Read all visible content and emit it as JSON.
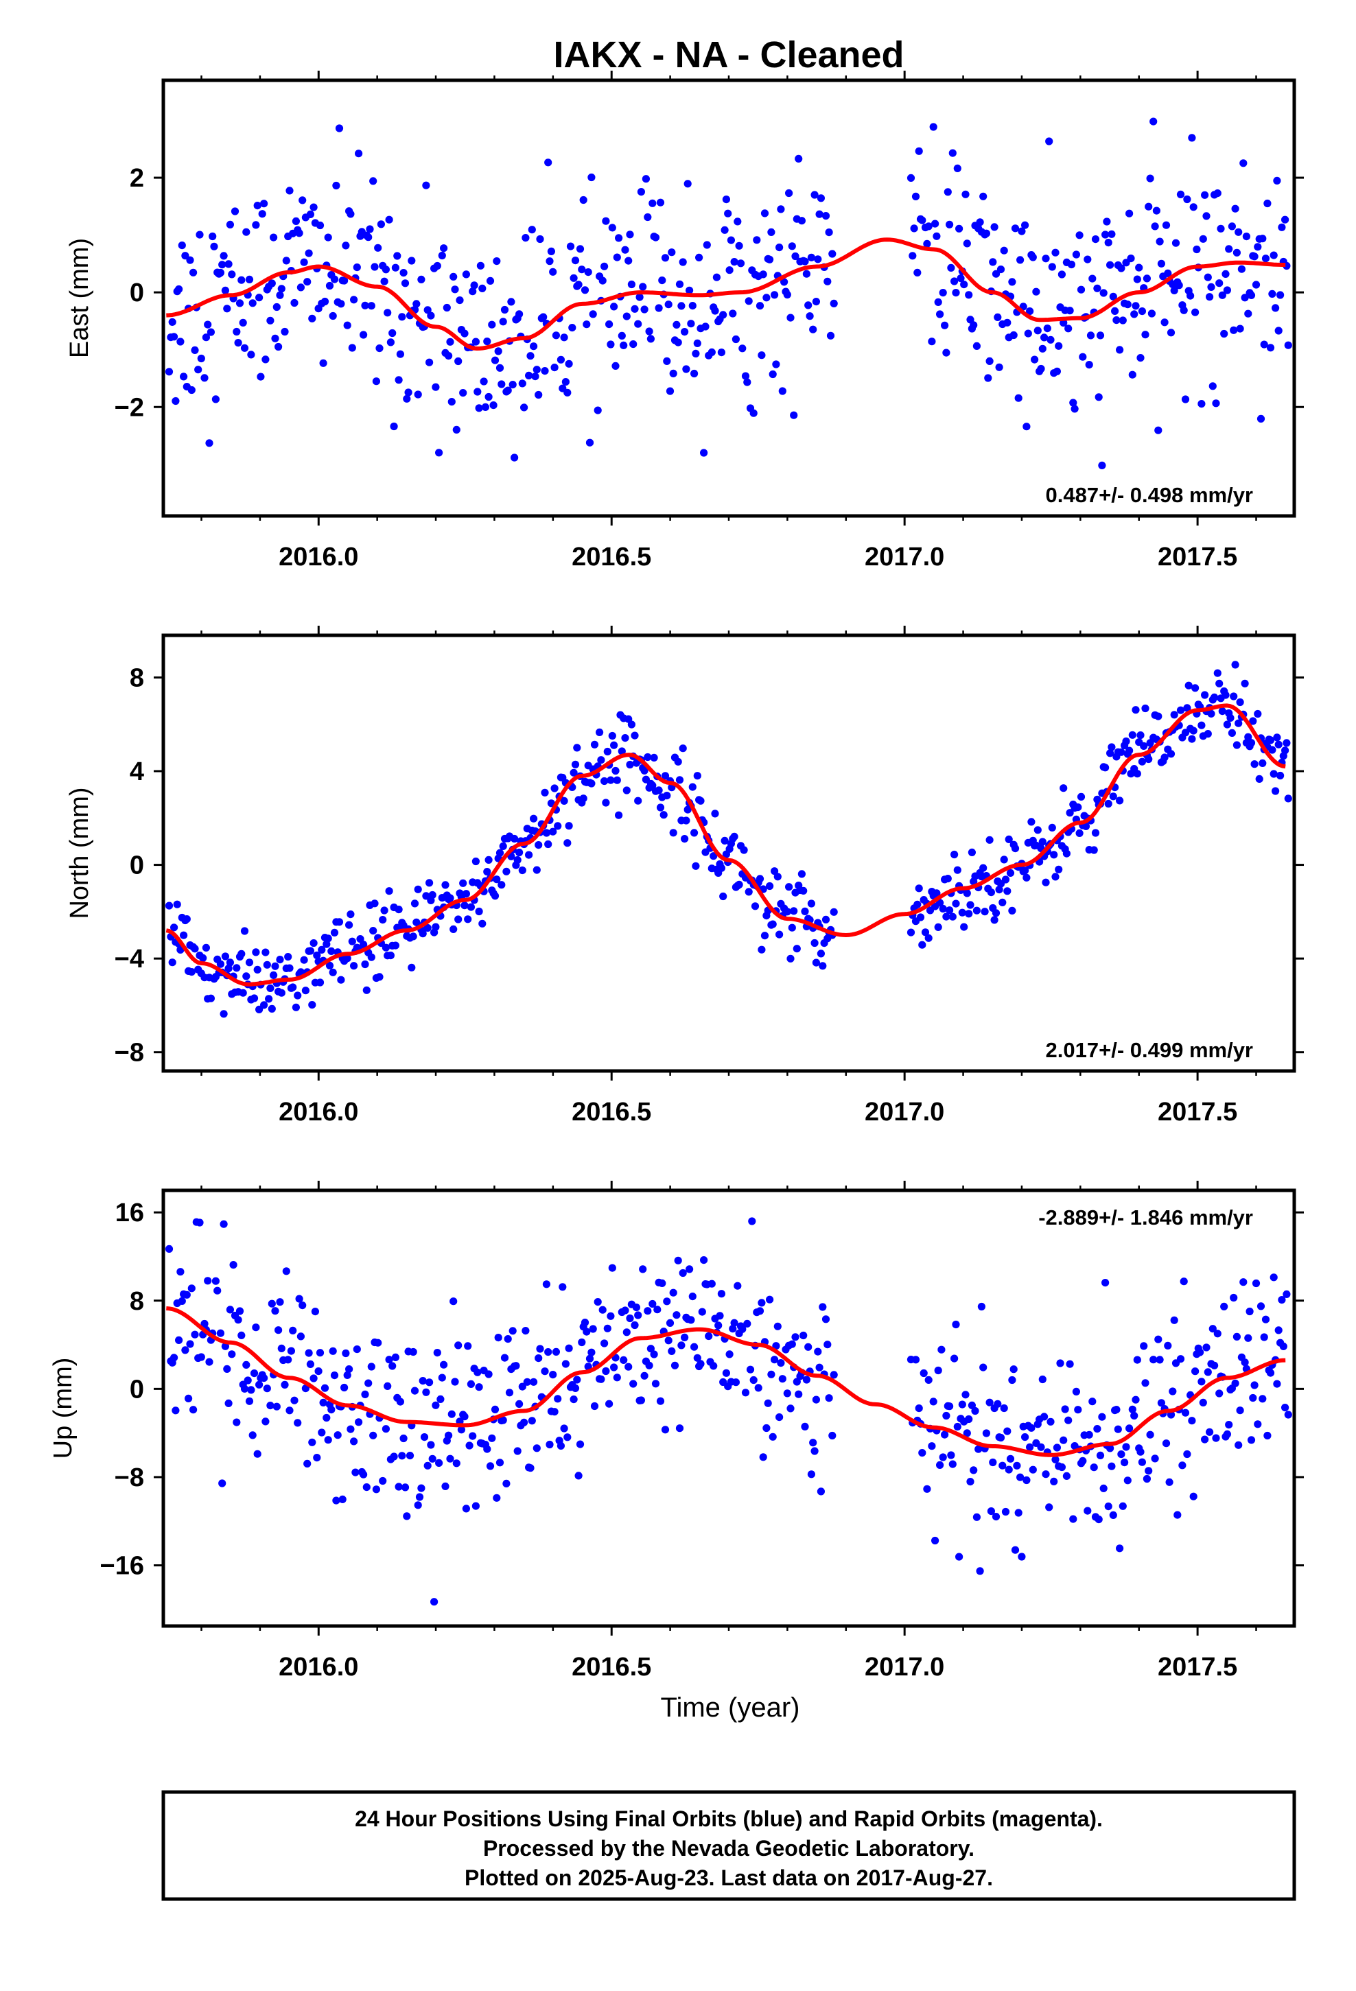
{
  "title": "IAKX  - NA - Cleaned",
  "x_axis_label": "Time (year)",
  "footer": {
    "line1": "24 Hour Positions Using Final Orbits (blue) and Rapid Orbits (magenta).",
    "line2": "Processed by the Nevada Geodetic Laboratory.",
    "line3": "Plotted on 2025-Aug-23. Last data on 2017-Aug-27."
  },
  "colors": {
    "points": "#0000ff",
    "fit": "#ff0000",
    "frame": "#000000"
  },
  "chart_data": [
    {
      "type": "scatter",
      "ylabel": "East (mm)",
      "rate_label": "0.487+/- 0.498 mm/yr",
      "rate_position": "bottom-right",
      "xlim": [
        2015.735,
        2017.665
      ],
      "ylim": [
        -3.9,
        3.7
      ],
      "x_ticks": [
        2016.0,
        2016.5,
        2017.0,
        2017.5
      ],
      "x_tick_labels": [
        "2016.0",
        "2016.5",
        "2017.0",
        "2017.5"
      ],
      "y_ticks": [
        -2,
        0,
        2
      ],
      "y_tick_labels": [
        "−2",
        "0",
        "2"
      ],
      "fit_curve": {
        "x": [
          2015.74,
          2015.85,
          2015.95,
          2016.0,
          2016.1,
          2016.2,
          2016.27,
          2016.35,
          2016.45,
          2016.55,
          2016.65,
          2016.72,
          2016.85,
          2016.97,
          2017.05,
          2017.15,
          2017.23,
          2017.3,
          2017.4,
          2017.5,
          2017.57,
          2017.65
        ],
        "y": [
          -0.4,
          -0.05,
          0.35,
          0.45,
          0.1,
          -0.6,
          -0.98,
          -0.8,
          -0.2,
          0.0,
          -0.05,
          0.0,
          0.45,
          0.92,
          0.75,
          0.0,
          -0.48,
          -0.45,
          0.0,
          0.45,
          0.52,
          0.48
        ]
      },
      "series": [
        {
          "name": "",
          "type": "fit",
          "note": "red curve"
        }
      ]
    },
    {
      "type": "scatter",
      "ylabel": "North (mm)",
      "rate_label": "2.017+/- 0.499 mm/yr",
      "rate_position": "bottom-right",
      "xlim": [
        2015.735,
        2017.665
      ],
      "ylim": [
        -8.8,
        9.8
      ],
      "x_ticks": [
        2016.0,
        2016.5,
        2017.0,
        2017.5
      ],
      "x_tick_labels": [
        "2016.0",
        "2016.5",
        "2017.0",
        "2017.5"
      ],
      "y_ticks": [
        -8,
        -4,
        0,
        4,
        8
      ],
      "y_tick_labels": [
        "−8",
        "−4",
        "0",
        "4",
        "8"
      ],
      "fit_curve": {
        "x": [
          2015.74,
          2015.8,
          2015.88,
          2015.95,
          2016.05,
          2016.15,
          2016.25,
          2016.35,
          2016.45,
          2016.53,
          2016.6,
          2016.7,
          2016.8,
          2016.9,
          2017.0,
          2017.1,
          2017.2,
          2017.3,
          2017.4,
          2017.5,
          2017.55,
          2017.65
        ],
        "y": [
          -2.8,
          -4.2,
          -5.1,
          -4.9,
          -3.8,
          -2.8,
          -1.5,
          0.9,
          3.8,
          4.7,
          3.5,
          0.2,
          -2.3,
          -3.0,
          -2.1,
          -1.0,
          0.0,
          1.8,
          4.7,
          6.6,
          6.8,
          4.2
        ]
      }
    },
    {
      "type": "scatter",
      "ylabel": "Up (mm)",
      "rate_label": "-2.889+/- 1.846 mm/yr",
      "rate_position": "top-right",
      "xlim": [
        2015.735,
        2017.665
      ],
      "ylim": [
        -21.5,
        18.0
      ],
      "x_ticks": [
        2016.0,
        2016.5,
        2017.0,
        2017.5
      ],
      "x_tick_labels": [
        "2016.0",
        "2016.5",
        "2017.0",
        "2017.5"
      ],
      "y_ticks": [
        -16,
        -8,
        0,
        8,
        16
      ],
      "y_tick_labels": [
        "−16",
        "−8",
        "0",
        "8",
        "16"
      ],
      "fit_curve": {
        "x": [
          2015.74,
          2015.85,
          2015.95,
          2016.05,
          2016.15,
          2016.25,
          2016.35,
          2016.45,
          2016.55,
          2016.65,
          2016.75,
          2016.85,
          2016.95,
          2017.05,
          2017.15,
          2017.25,
          2017.35,
          2017.45,
          2017.55,
          2017.65
        ],
        "y": [
          7.3,
          4.2,
          1.0,
          -1.5,
          -3.0,
          -3.3,
          -2.0,
          1.5,
          4.6,
          5.4,
          4.0,
          1.2,
          -1.4,
          -3.5,
          -5.2,
          -6.0,
          -5.0,
          -2.0,
          1.0,
          2.6
        ]
      }
    }
  ]
}
